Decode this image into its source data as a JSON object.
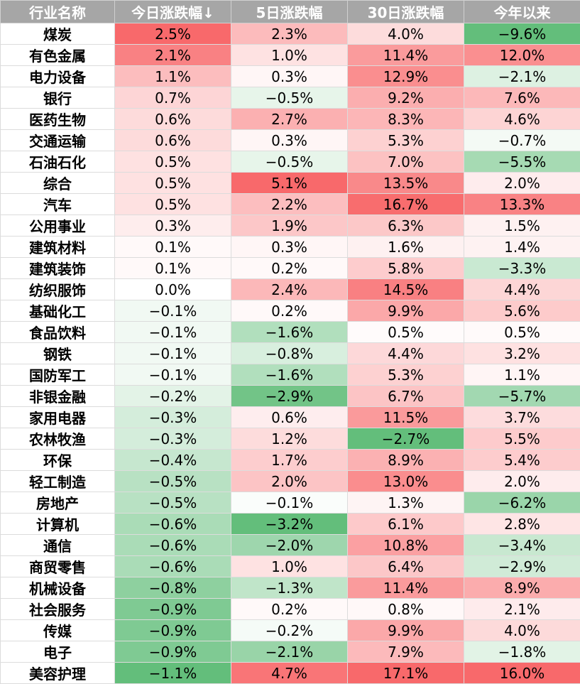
{
  "table": {
    "headers": [
      "行业名称",
      "今日涨跌幅↓",
      "5日涨跌幅",
      "30日涨跌幅",
      "今年以来"
    ],
    "rows": [
      {
        "name": "煤炭",
        "values": [
          "2.5%",
          "2.3%",
          "4.0%",
          "−9.6%"
        ]
      },
      {
        "name": "有色金属",
        "values": [
          "2.1%",
          "1.0%",
          "11.4%",
          "12.0%"
        ]
      },
      {
        "name": "电力设备",
        "values": [
          "1.1%",
          "0.3%",
          "12.9%",
          "−2.1%"
        ]
      },
      {
        "name": "银行",
        "values": [
          "0.7%",
          "−0.5%",
          "9.2%",
          "7.6%"
        ]
      },
      {
        "name": "医药生物",
        "values": [
          "0.6%",
          "2.7%",
          "8.3%",
          "4.6%"
        ]
      },
      {
        "name": "交通运输",
        "values": [
          "0.6%",
          "0.3%",
          "5.3%",
          "−0.7%"
        ]
      },
      {
        "name": "石油石化",
        "values": [
          "0.5%",
          "−0.5%",
          "7.0%",
          "−5.5%"
        ]
      },
      {
        "name": "综合",
        "values": [
          "0.5%",
          "5.1%",
          "13.5%",
          "2.0%"
        ]
      },
      {
        "name": "汽车",
        "values": [
          "0.5%",
          "2.2%",
          "16.7%",
          "13.3%"
        ]
      },
      {
        "name": "公用事业",
        "values": [
          "0.3%",
          "1.9%",
          "6.3%",
          "1.5%"
        ]
      },
      {
        "name": "建筑材料",
        "values": [
          "0.1%",
          "0.3%",
          "1.6%",
          "1.4%"
        ]
      },
      {
        "name": "建筑装饰",
        "values": [
          "0.1%",
          "0.2%",
          "5.8%",
          "−3.3%"
        ]
      },
      {
        "name": "纺织服饰",
        "values": [
          "0.0%",
          "2.4%",
          "14.5%",
          "4.4%"
        ]
      },
      {
        "name": "基础化工",
        "values": [
          "−0.1%",
          "0.2%",
          "9.9%",
          "5.6%"
        ]
      },
      {
        "name": "食品饮料",
        "values": [
          "−0.1%",
          "−1.6%",
          "0.5%",
          "0.5%"
        ]
      },
      {
        "name": "钢铁",
        "values": [
          "−0.1%",
          "−0.8%",
          "4.4%",
          "3.2%"
        ]
      },
      {
        "name": "国防军工",
        "values": [
          "−0.1%",
          "−1.6%",
          "5.3%",
          "1.1%"
        ]
      },
      {
        "name": "非银金融",
        "values": [
          "−0.2%",
          "−2.9%",
          "6.7%",
          "−5.7%"
        ]
      },
      {
        "name": "家用电器",
        "values": [
          "−0.3%",
          "0.6%",
          "11.5%",
          "3.7%"
        ]
      },
      {
        "name": "农林牧渔",
        "values": [
          "−0.3%",
          "1.2%",
          "−2.7%",
          "5.5%"
        ]
      },
      {
        "name": "环保",
        "values": [
          "−0.4%",
          "1.7%",
          "8.9%",
          "5.4%"
        ]
      },
      {
        "name": "轻工制造",
        "values": [
          "−0.5%",
          "2.0%",
          "13.0%",
          "2.0%"
        ]
      },
      {
        "name": "房地产",
        "values": [
          "−0.5%",
          "−0.1%",
          "1.3%",
          "−6.2%"
        ]
      },
      {
        "name": "计算机",
        "values": [
          "−0.6%",
          "−3.2%",
          "6.1%",
          "2.8%"
        ]
      },
      {
        "name": "通信",
        "values": [
          "−0.6%",
          "−2.0%",
          "10.8%",
          "−3.4%"
        ]
      },
      {
        "name": "商贸零售",
        "values": [
          "−0.6%",
          "1.0%",
          "6.4%",
          "−2.9%"
        ]
      },
      {
        "name": "机械设备",
        "values": [
          "−0.8%",
          "−1.3%",
          "11.4%",
          "8.9%"
        ]
      },
      {
        "name": "社会服务",
        "values": [
          "−0.9%",
          "0.2%",
          "0.8%",
          "2.1%"
        ]
      },
      {
        "name": "传媒",
        "values": [
          "−0.9%",
          "−0.2%",
          "9.9%",
          "4.0%"
        ]
      },
      {
        "name": "电子",
        "values": [
          "−0.9%",
          "−2.1%",
          "7.9%",
          "−1.8%"
        ]
      },
      {
        "name": "美容护理",
        "values": [
          "−1.1%",
          "4.7%",
          "17.1%",
          "16.0%"
        ]
      }
    ]
  },
  "colors": {
    "header_bg": "#a6a6a6",
    "header_text": "#ffffff",
    "positive_max": "#f8696b",
    "negative_max": "#63be7b",
    "neutral": "#ffffff"
  }
}
